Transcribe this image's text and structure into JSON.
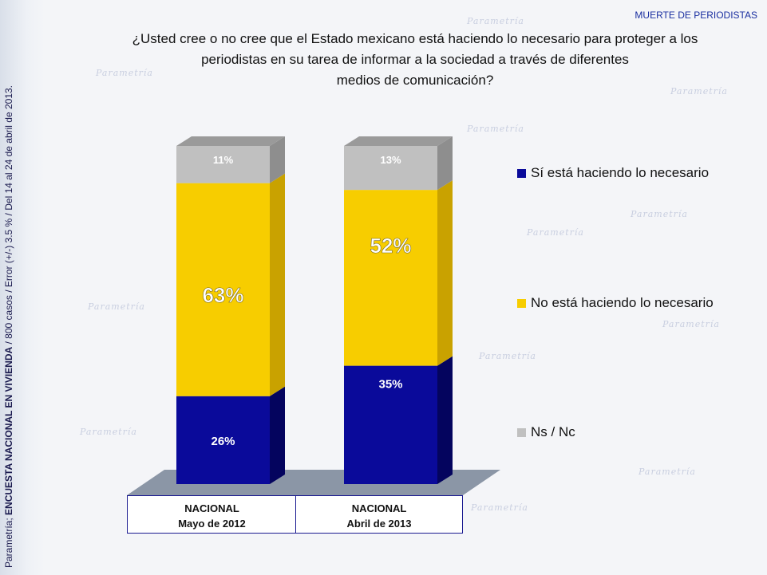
{
  "topic": "MUERTE DE PERIODISTAS",
  "question": {
    "line1": "¿Usted cree o no cree que el Estado mexicano está haciendo lo necesario para proteger a los",
    "line2": "periodistas en su tarea de informar a la sociedad a través de diferentes",
    "line3": "medios de comunicación?"
  },
  "side_note": {
    "prefix": "Parametría; ",
    "bold": "ENCUESTA NACIONAL EN VIVIENDA",
    "rest": " / 800 casos / Error (+/-) 3.5 % / Del 14 al 24  de abril de 2013."
  },
  "colors": {
    "si": "#0a0a9a",
    "no": "#f7cd00",
    "ns": "#c0c0c0"
  },
  "chart_data": {
    "type": "bar",
    "stacked": true,
    "categories": [
      {
        "line1": "NACIONAL",
        "line2": "Mayo de 2012"
      },
      {
        "line1": "NACIONAL",
        "line2": "Abril de 2013"
      }
    ],
    "series": [
      {
        "name": "Sí está haciendo lo necesario",
        "values": [
          26,
          35
        ],
        "labels": [
          "26%",
          "35%"
        ]
      },
      {
        "name": "No está haciendo lo necesario",
        "values": [
          63,
          52
        ],
        "labels": [
          "63%",
          "52%"
        ]
      },
      {
        "name": "Ns / Nc",
        "values": [
          11,
          13
        ],
        "labels": [
          "11%",
          "13%"
        ]
      }
    ],
    "ylim": [
      0,
      100
    ],
    "legend_position": "right"
  }
}
